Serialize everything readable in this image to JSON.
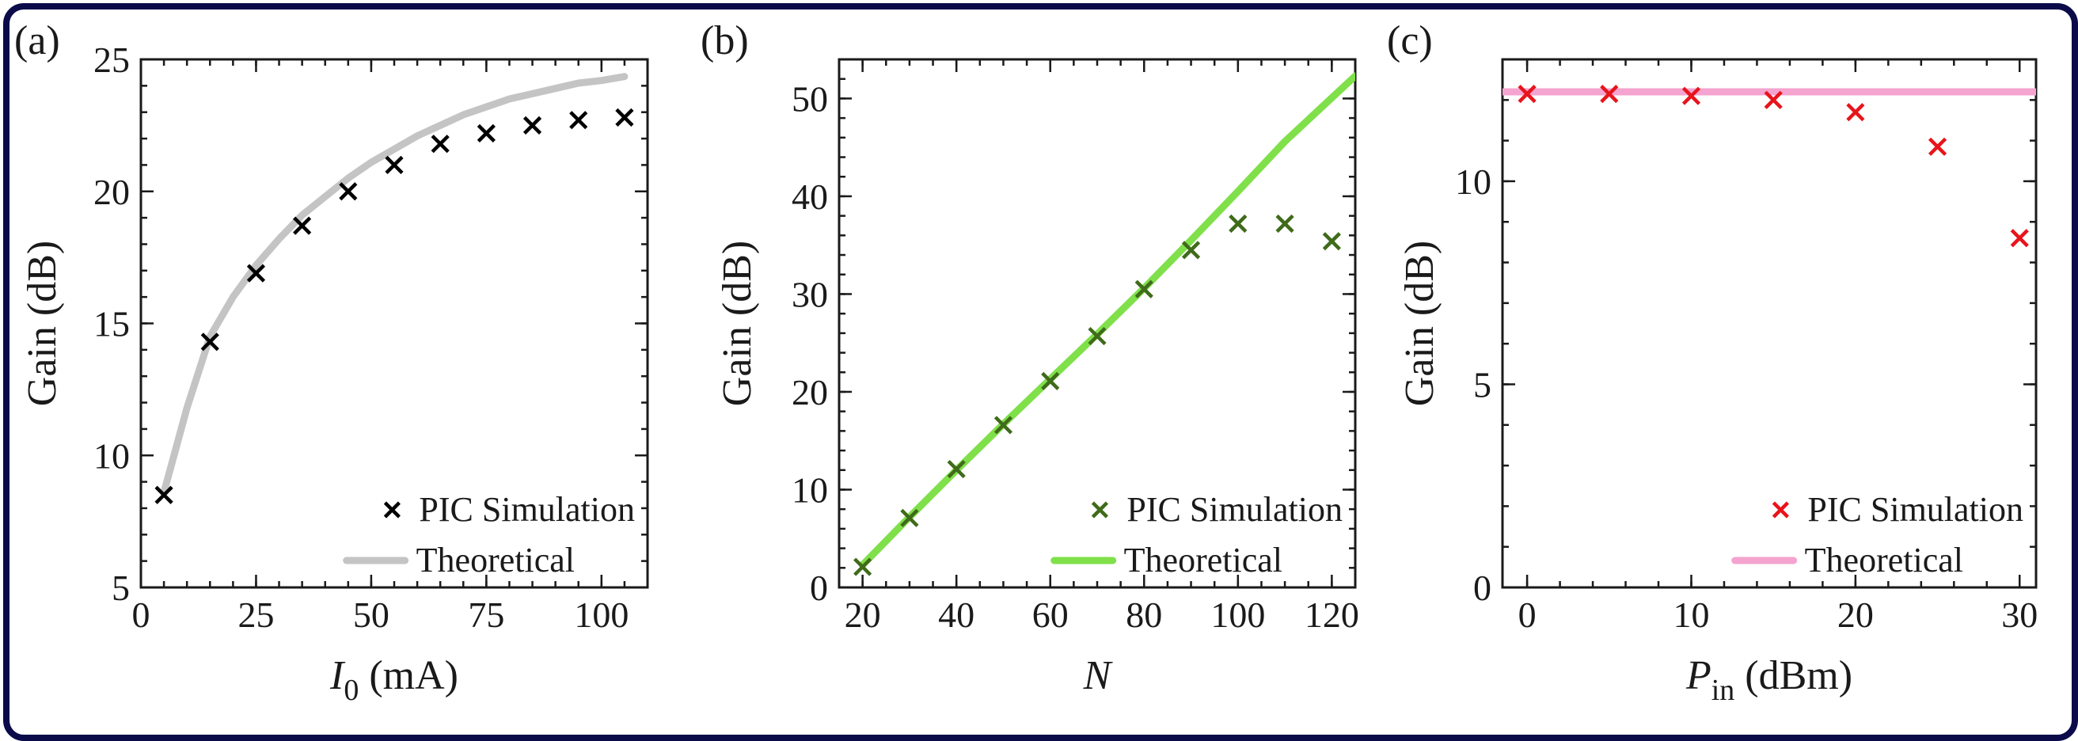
{
  "chart_data": [
    {
      "type": "line+scatter",
      "panel_label": "(a)",
      "xlabel_main": "I",
      "xlabel_sub": "0",
      "xlabel_rest": " (mA)",
      "ylabel": "Gain (dB)",
      "xlim": [
        0,
        110
      ],
      "ylim": [
        5,
        25
      ],
      "xticks": [
        0,
        25,
        50,
        75,
        100
      ],
      "yticks": [
        5,
        10,
        15,
        20,
        25
      ],
      "minor_x": 5,
      "minor_y": 1,
      "scatter": {
        "name": "PIC Simulation",
        "color": "#000000",
        "x": [
          5,
          15,
          25,
          35,
          45,
          55,
          65,
          75,
          85,
          95,
          105
        ],
        "y": [
          8.5,
          14.3,
          16.9,
          18.7,
          20.0,
          21.0,
          21.8,
          22.2,
          22.5,
          22.7,
          22.8
        ]
      },
      "line": {
        "name": "Theoretical",
        "color": "#c4c4c4",
        "x": [
          5,
          10,
          15,
          20,
          25,
          30,
          35,
          40,
          45,
          50,
          55,
          60,
          65,
          70,
          75,
          80,
          85,
          90,
          95,
          100,
          105
        ],
        "y": [
          8.6,
          11.8,
          14.5,
          16.0,
          17.2,
          18.2,
          19.1,
          19.8,
          20.5,
          21.1,
          21.6,
          22.1,
          22.5,
          22.9,
          23.2,
          23.5,
          23.7,
          23.9,
          24.1,
          24.2,
          24.35
        ]
      }
    },
    {
      "type": "line+scatter",
      "panel_label": "(b)",
      "xlabel_main": "N",
      "xlabel_sub": "",
      "xlabel_rest": "",
      "ylabel": "Gain (dB)",
      "xlim": [
        15,
        125
      ],
      "ylim": [
        0,
        54
      ],
      "xticks": [
        20,
        40,
        60,
        80,
        100,
        120
      ],
      "yticks": [
        0,
        10,
        20,
        30,
        40,
        50
      ],
      "minor_x": 5,
      "minor_y": 2,
      "scatter": {
        "name": "PIC Simulation",
        "color": "#3f6b1a",
        "x": [
          20,
          30,
          40,
          50,
          60,
          70,
          80,
          90,
          100,
          110,
          120
        ],
        "y": [
          2.1,
          7.1,
          12.1,
          16.6,
          21.1,
          25.7,
          30.5,
          34.5,
          37.2,
          37.2,
          35.4
        ]
      },
      "line": {
        "name": "Theoretical",
        "color": "#7fe04a",
        "x": [
          20,
          30,
          40,
          50,
          60,
          70,
          80,
          90,
          100,
          110,
          125
        ],
        "y": [
          2.3,
          7.2,
          12.0,
          16.7,
          21.3,
          25.9,
          30.6,
          35.5,
          40.5,
          45.6,
          52.3
        ]
      }
    },
    {
      "type": "line+scatter",
      "panel_label": "(c)",
      "xlabel_main": "P",
      "xlabel_sub": "in",
      "xlabel_rest": " (dBm)",
      "ylabel": "Gain (dB)",
      "xlim": [
        -1.5,
        31
      ],
      "ylim": [
        0,
        13
      ],
      "xticks": [
        0,
        10,
        20,
        30
      ],
      "yticks": [
        0,
        5,
        10
      ],
      "minor_x": 2,
      "minor_y": 1,
      "scatter": {
        "name": "PIC Simulation",
        "color": "#e8141b",
        "x": [
          0,
          5,
          10,
          15,
          20,
          25,
          30
        ],
        "y": [
          12.15,
          12.15,
          12.1,
          12.0,
          11.7,
          10.85,
          8.6
        ]
      },
      "line": {
        "name": "Theoretical",
        "color": "#f5a3cf",
        "x": [
          -1.5,
          31
        ],
        "y": [
          12.2,
          12.2
        ]
      }
    }
  ]
}
